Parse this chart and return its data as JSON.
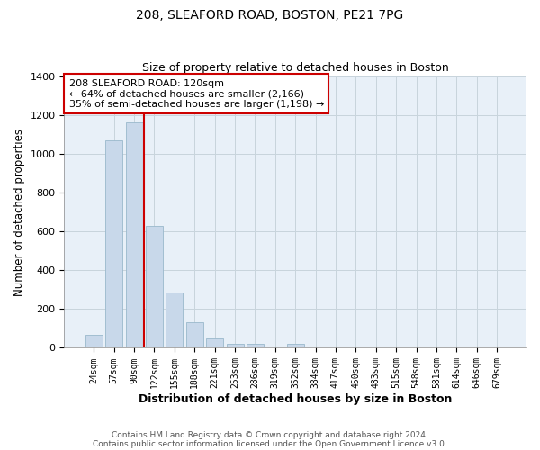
{
  "title1": "208, SLEAFORD ROAD, BOSTON, PE21 7PG",
  "title2": "Size of property relative to detached houses in Boston",
  "xlabel": "Distribution of detached houses by size in Boston",
  "ylabel": "Number of detached properties",
  "bar_labels": [
    "24sqm",
    "57sqm",
    "90sqm",
    "122sqm",
    "155sqm",
    "188sqm",
    "221sqm",
    "253sqm",
    "286sqm",
    "319sqm",
    "352sqm",
    "384sqm",
    "417sqm",
    "450sqm",
    "483sqm",
    "515sqm",
    "548sqm",
    "581sqm",
    "614sqm",
    "646sqm",
    "679sqm"
  ],
  "bar_values": [
    65,
    1070,
    1160,
    630,
    285,
    130,
    47,
    20,
    20,
    0,
    20,
    0,
    0,
    0,
    0,
    0,
    0,
    0,
    0,
    0,
    0
  ],
  "bar_color": "#c8d8ea",
  "bar_edge_color": "#9ab8cc",
  "vline_color": "#cc0000",
  "ylim": [
    0,
    1400
  ],
  "yticks": [
    0,
    200,
    400,
    600,
    800,
    1000,
    1200,
    1400
  ],
  "annotation_line1": "208 SLEAFORD ROAD: 120sqm",
  "annotation_line2": "← 64% of detached houses are smaller (2,166)",
  "annotation_line3": "35% of semi-detached houses are larger (1,198) →",
  "annotation_box_color": "#ffffff",
  "annotation_box_edge_color": "#cc0000",
  "footer1": "Contains HM Land Registry data © Crown copyright and database right 2024.",
  "footer2": "Contains public sector information licensed under the Open Government Licence v3.0.",
  "bg_color": "#ffffff",
  "plot_bg_color": "#e8f0f8"
}
